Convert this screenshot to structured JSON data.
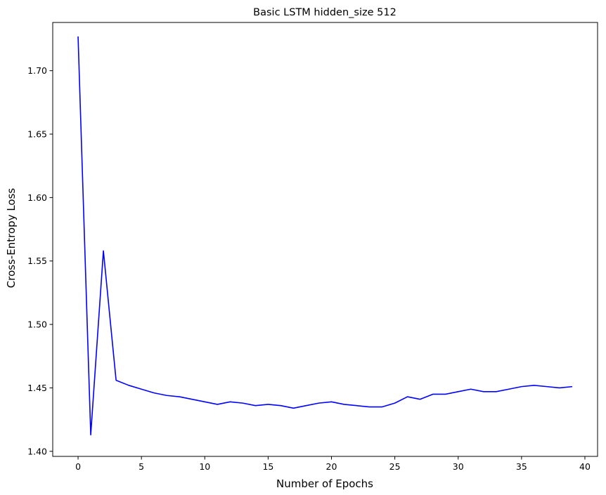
{
  "chart_data": {
    "type": "line",
    "title": "Basic LSTM hidden_size 512",
    "xlabel": "Number of Epochs",
    "ylabel": "Cross-Entropy Loss",
    "xlim": [
      -2,
      41
    ],
    "ylim": [
      1.396,
      1.738
    ],
    "xticks": [
      0,
      5,
      10,
      15,
      20,
      25,
      30,
      35,
      40
    ],
    "yticks": [
      1.4,
      1.45,
      1.5,
      1.55,
      1.6,
      1.65,
      1.7
    ],
    "ytick_labels": [
      "1.40",
      "1.45",
      "1.50",
      "1.55",
      "1.60",
      "1.65",
      "1.70"
    ],
    "grid": false,
    "line_color": "#0000ff",
    "series": [
      {
        "x": [
          0,
          1,
          2,
          3,
          4,
          5,
          6,
          7,
          8,
          9,
          10,
          11,
          12,
          13,
          14,
          15,
          16,
          17,
          18,
          19,
          20,
          21,
          22,
          23,
          24,
          25,
          26,
          27,
          28,
          29,
          30,
          31,
          32,
          33,
          34,
          35,
          36,
          37,
          38,
          39
        ],
        "values": [
          1.727,
          1.413,
          1.558,
          1.456,
          1.452,
          1.449,
          1.446,
          1.444,
          1.443,
          1.441,
          1.439,
          1.437,
          1.439,
          1.438,
          1.436,
          1.437,
          1.436,
          1.434,
          1.436,
          1.438,
          1.439,
          1.437,
          1.436,
          1.435,
          1.435,
          1.438,
          1.443,
          1.441,
          1.445,
          1.445,
          1.447,
          1.449,
          1.447,
          1.447,
          1.449,
          1.451,
          1.452,
          1.451,
          1.45,
          1.451
        ]
      }
    ]
  }
}
